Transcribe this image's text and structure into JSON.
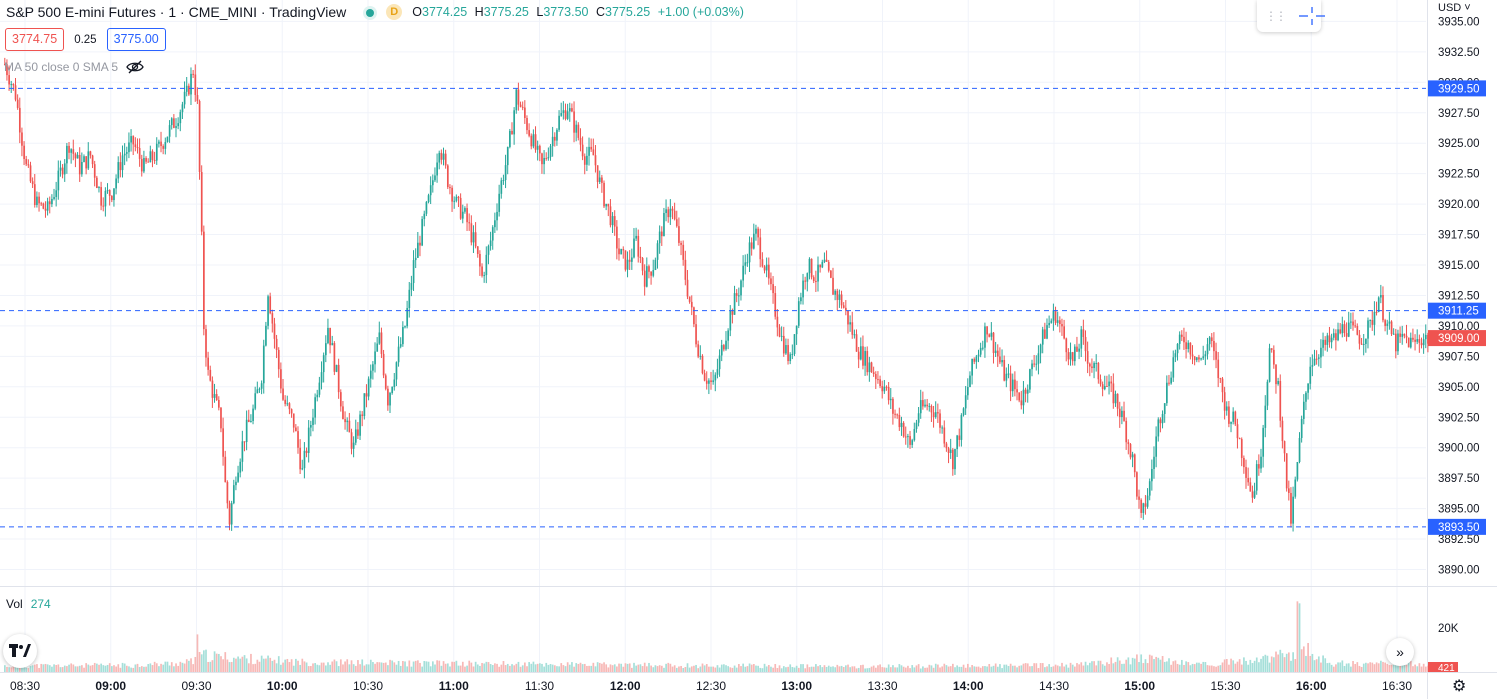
{
  "header": {
    "symbol_title": "S&P 500 E-mini Futures · 1 · CME_MINI · TradingView",
    "delay_badge": "D",
    "ohlc": {
      "o_label": "O",
      "o": "3774.25",
      "h_label": "H",
      "h": "3775.25",
      "l_label": "L",
      "l": "3773.50",
      "c_label": "C",
      "c": "3775.25",
      "change": "+1.00 (+0.03%)"
    }
  },
  "quote": {
    "bid": "3774.75",
    "spread": "0.25",
    "ask": "3775.00"
  },
  "indicator": {
    "label": "MA 50 close 0 SMA 5",
    "icon": "eye-off-icon"
  },
  "volume": {
    "label": "Vol",
    "value": "274"
  },
  "currency": "USD",
  "colors": {
    "up": "#26a69a",
    "down": "#ef5350",
    "line": "#2962ff",
    "grid": "#f0f3fa"
  },
  "chart_data": {
    "type": "candlestick",
    "title": "S&P 500 E-mini Futures",
    "y_ticks": [
      "3935.00",
      "3932.50",
      "3930.00",
      "3927.50",
      "3925.00",
      "3922.50",
      "3920.00",
      "3917.50",
      "3915.00",
      "3912.50",
      "3910.00",
      "3907.50",
      "3905.00",
      "3902.50",
      "3900.00",
      "3897.50",
      "3895.00",
      "3892.50",
      "3890.00"
    ],
    "ylim": [
      3889,
      3935.6
    ],
    "x_ticks": [
      "08:30",
      "09:00",
      "09:30",
      "10:00",
      "10:30",
      "11:00",
      "11:30",
      "12:00",
      "12:30",
      "13:00",
      "13:30",
      "14:00",
      "14:30",
      "15:00",
      "15:30",
      "16:00",
      "16:30"
    ],
    "x_tick_bold": [
      false,
      true,
      false,
      true,
      false,
      true,
      false,
      true,
      false,
      true,
      false,
      true,
      false,
      true,
      false,
      true,
      false
    ],
    "horizontal_lines": [
      {
        "value": 3929.5,
        "label": "3929.50"
      },
      {
        "value": 3911.25,
        "label": "3911.25"
      },
      {
        "value": 3893.5,
        "label": "3893.50"
      }
    ],
    "last_price": {
      "value": 3909.0,
      "label": "3909.00"
    },
    "close_path": [
      [
        0,
        3931.5
      ],
      [
        5,
        3929
      ],
      [
        10,
        3923
      ],
      [
        15,
        3920
      ],
      [
        20,
        3919.5
      ],
      [
        25,
        3922
      ],
      [
        30,
        3925
      ],
      [
        35,
        3923
      ],
      [
        40,
        3924
      ],
      [
        45,
        3920.5
      ],
      [
        50,
        3921
      ],
      [
        55,
        3924
      ],
      [
        60,
        3925
      ],
      [
        65,
        3923
      ],
      [
        70,
        3924
      ],
      [
        75,
        3925.5
      ],
      [
        80,
        3927
      ],
      [
        85,
        3929
      ],
      [
        88,
        3931
      ],
      [
        90,
        3928
      ],
      [
        92,
        3917
      ],
      [
        93,
        3910
      ],
      [
        95,
        3906
      ],
      [
        98,
        3904
      ],
      [
        101,
        3902
      ],
      [
        103,
        3897
      ],
      [
        105,
        3894
      ],
      [
        108,
        3898
      ],
      [
        112,
        3901
      ],
      [
        116,
        3903
      ],
      [
        120,
        3906
      ],
      [
        123,
        3913
      ],
      [
        126,
        3909
      ],
      [
        130,
        3904
      ],
      [
        135,
        3902
      ],
      [
        139,
        3898
      ],
      [
        143,
        3902
      ],
      [
        147,
        3906
      ],
      [
        151,
        3910
      ],
      [
        155,
        3906
      ],
      [
        159,
        3902
      ],
      [
        163,
        3900
      ],
      [
        167,
        3903
      ],
      [
        171,
        3906
      ],
      [
        175,
        3909
      ],
      [
        179,
        3904
      ],
      [
        183,
        3907
      ],
      [
        187,
        3910
      ],
      [
        191,
        3915
      ],
      [
        195,
        3918
      ],
      [
        199,
        3921
      ],
      [
        203,
        3925
      ],
      [
        207,
        3922
      ],
      [
        211,
        3920
      ],
      [
        215,
        3919
      ],
      [
        219,
        3917
      ],
      [
        223,
        3914
      ],
      [
        227,
        3917
      ],
      [
        231,
        3921
      ],
      [
        235,
        3924
      ],
      [
        239,
        3929
      ],
      [
        243,
        3927
      ],
      [
        247,
        3925
      ],
      [
        251,
        3923
      ],
      [
        255,
        3925
      ],
      [
        259,
        3927
      ],
      [
        263,
        3928
      ],
      [
        267,
        3926
      ],
      [
        271,
        3924
      ],
      [
        275,
        3924
      ],
      [
        279,
        3921
      ],
      [
        283,
        3919
      ],
      [
        287,
        3916
      ],
      [
        291,
        3915
      ],
      [
        295,
        3917
      ],
      [
        299,
        3914
      ],
      [
        303,
        3915
      ],
      [
        307,
        3918
      ],
      [
        311,
        3920
      ],
      [
        315,
        3917
      ],
      [
        319,
        3913
      ],
      [
        323,
        3909
      ],
      [
        327,
        3906
      ],
      [
        331,
        3905
      ],
      [
        335,
        3908
      ],
      [
        339,
        3911
      ],
      [
        343,
        3913
      ],
      [
        347,
        3916
      ],
      [
        351,
        3917.5
      ],
      [
        355,
        3915
      ],
      [
        359,
        3912
      ],
      [
        363,
        3909
      ],
      [
        367,
        3907
      ],
      [
        371,
        3912
      ],
      [
        375,
        3915
      ],
      [
        379,
        3914
      ],
      [
        383,
        3915
      ],
      [
        387,
        3913
      ],
      [
        391,
        3912
      ],
      [
        395,
        3910
      ],
      [
        399,
        3908
      ],
      [
        403,
        3907
      ],
      [
        407,
        3906
      ],
      [
        411,
        3905
      ],
      [
        415,
        3903
      ],
      [
        419,
        3902
      ],
      [
        423,
        3900
      ],
      [
        427,
        3903
      ],
      [
        431,
        3903.5
      ],
      [
        435,
        3903
      ],
      [
        439,
        3901
      ],
      [
        443,
        3899
      ],
      [
        447,
        3902
      ],
      [
        451,
        3906
      ],
      [
        455,
        3908
      ],
      [
        459,
        3910
      ],
      [
        463,
        3908
      ],
      [
        467,
        3906
      ],
      [
        471,
        3905
      ],
      [
        475,
        3904
      ],
      [
        479,
        3906
      ],
      [
        483,
        3908
      ],
      [
        487,
        3910
      ],
      [
        491,
        3911
      ],
      [
        495,
        3909
      ],
      [
        499,
        3907
      ],
      [
        503,
        3909
      ],
      [
        507,
        3907
      ],
      [
        511,
        3906
      ],
      [
        515,
        3905
      ],
      [
        519,
        3904
      ],
      [
        523,
        3902
      ],
      [
        527,
        3899
      ],
      [
        531,
        3894
      ],
      [
        535,
        3897
      ],
      [
        539,
        3902
      ],
      [
        543,
        3905
      ],
      [
        547,
        3908
      ],
      [
        551,
        3909
      ],
      [
        555,
        3908
      ],
      [
        559,
        3907
      ],
      [
        563,
        3909
      ],
      [
        567,
        3906
      ],
      [
        571,
        3903
      ],
      [
        575,
        3902
      ],
      [
        579,
        3899
      ],
      [
        583,
        3896
      ],
      [
        587,
        3900
      ],
      [
        591,
        3908
      ],
      [
        595,
        3905
      ],
      [
        599,
        3897
      ],
      [
        601,
        3894
      ],
      [
        603,
        3897
      ],
      [
        606,
        3902
      ],
      [
        610,
        3907
      ],
      [
        614,
        3908
      ],
      [
        618,
        3908.5
      ],
      [
        622,
        3909
      ],
      [
        626,
        3910
      ],
      [
        630,
        3909.5
      ],
      [
        634,
        3909
      ],
      [
        638,
        3910
      ],
      [
        642,
        3912.5
      ],
      [
        646,
        3910
      ],
      [
        650,
        3908.5
      ],
      [
        654,
        3909
      ],
      [
        658,
        3908.5
      ],
      [
        662,
        3909
      ],
      [
        666,
        3909
      ]
    ],
    "volume_max": 27000,
    "volume_ticks": [
      "20K"
    ],
    "volume_profile": [
      [
        0,
        2000
      ],
      [
        60,
        2200
      ],
      [
        84,
        3000
      ],
      [
        88,
        3500
      ],
      [
        90,
        9000
      ],
      [
        91,
        5500
      ],
      [
        100,
        5000
      ],
      [
        140,
        3200
      ],
      [
        200,
        2800
      ],
      [
        300,
        2200
      ],
      [
        400,
        1800
      ],
      [
        500,
        2200
      ],
      [
        530,
        4500
      ],
      [
        560,
        2500
      ],
      [
        590,
        4200
      ],
      [
        603,
        6500
      ],
      [
        605,
        27000
      ],
      [
        606,
        8000
      ],
      [
        620,
        2800
      ],
      [
        666,
        2600
      ]
    ],
    "volume_last_label": "421"
  }
}
